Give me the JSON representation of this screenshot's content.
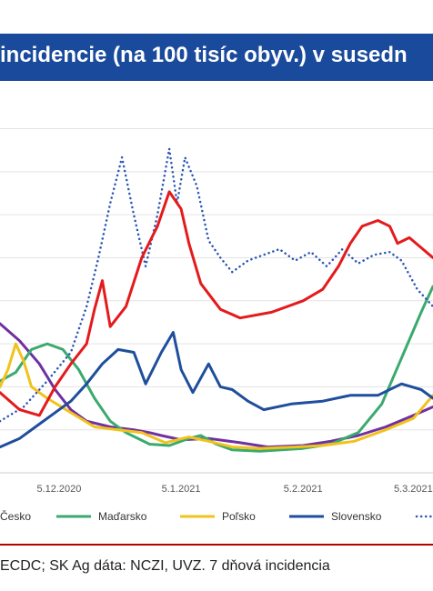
{
  "title": "incidencie (na 100 tisíc obyv.) v susedn",
  "source": "ECDC; SK Ag dáta: NCZI, UVZ. 7 dňová incidencia",
  "colors": {
    "title_bg": "#1a4a9c",
    "cesko": "#7030a0",
    "madarsko": "#3aaa6e",
    "polsko": "#f2c21b",
    "slovensko": "#1f4e9c",
    "dotted": "#2a55b5",
    "red": "#e41a1c"
  },
  "chart_data": {
    "type": "line",
    "title": "incidencie (na 100 tisíc obyv.) v susedn",
    "x_ticks": [
      "5.12.2020",
      "5.1.2021",
      "5.2.2021",
      "5.3.2021"
    ],
    "x_range": [
      "2020-11-20",
      "2021-03-10"
    ],
    "y_range": [
      0,
      13
    ],
    "grid": true,
    "legend_position": "bottom",
    "legend": [
      "Česko",
      "Maďarsko",
      "Poľsko",
      "Slovensko"
    ],
    "series": [
      {
        "name": "Česko",
        "color": "#7030a0",
        "style": "solid",
        "points": [
          [
            "2020-11-20",
            5.2
          ],
          [
            "2020-11-25",
            4.6
          ],
          [
            "2020-11-30",
            3.8
          ],
          [
            "2020-12-04",
            2.9
          ],
          [
            "2020-12-08",
            2.2
          ],
          [
            "2020-12-12",
            1.8
          ],
          [
            "2020-12-18",
            1.6
          ],
          [
            "2020-12-24",
            1.5
          ],
          [
            "2020-12-28",
            1.4
          ],
          [
            "2020-12-31",
            1.3
          ],
          [
            "2021-01-05",
            1.15
          ],
          [
            "2021-01-12",
            1.2
          ],
          [
            "2021-01-20",
            1.05
          ],
          [
            "2021-01-27",
            0.9
          ],
          [
            "2021-02-05",
            0.95
          ],
          [
            "2021-02-12",
            1.1
          ],
          [
            "2021-02-19",
            1.3
          ],
          [
            "2021-02-26",
            1.6
          ],
          [
            "2021-03-05",
            2.0
          ],
          [
            "2021-03-10",
            2.3
          ]
        ]
      },
      {
        "name": "Maďarsko",
        "color": "#3aaa6e",
        "style": "solid",
        "points": [
          [
            "2020-11-20",
            3.2
          ],
          [
            "2020-11-24",
            3.5
          ],
          [
            "2020-11-28",
            4.3
          ],
          [
            "2020-12-02",
            4.5
          ],
          [
            "2020-12-06",
            4.3
          ],
          [
            "2020-12-10",
            3.6
          ],
          [
            "2020-12-14",
            2.6
          ],
          [
            "2020-12-18",
            1.8
          ],
          [
            "2020-12-22",
            1.4
          ],
          [
            "2020-12-28",
            1.0
          ],
          [
            "2021-01-02",
            0.95
          ],
          [
            "2021-01-07",
            1.2
          ],
          [
            "2021-01-10",
            1.3
          ],
          [
            "2021-01-14",
            1.0
          ],
          [
            "2021-01-18",
            0.8
          ],
          [
            "2021-01-25",
            0.75
          ],
          [
            "2021-02-05",
            0.85
          ],
          [
            "2021-02-12",
            1.0
          ],
          [
            "2021-02-19",
            1.4
          ],
          [
            "2021-02-25",
            2.4
          ],
          [
            "2021-03-02",
            4.0
          ],
          [
            "2021-03-07",
            5.6
          ],
          [
            "2021-03-10",
            6.5
          ]
        ]
      },
      {
        "name": "Poľsko",
        "color": "#f2c21b",
        "style": "solid",
        "points": [
          [
            "2020-11-20",
            3.0
          ],
          [
            "2020-11-22",
            3.6
          ],
          [
            "2020-11-24",
            4.5
          ],
          [
            "2020-11-26",
            3.9
          ],
          [
            "2020-11-28",
            3.0
          ],
          [
            "2020-12-02",
            2.6
          ],
          [
            "2020-12-08",
            2.1
          ],
          [
            "2020-12-14",
            1.6
          ],
          [
            "2020-12-20",
            1.5
          ],
          [
            "2020-12-26",
            1.4
          ],
          [
            "2021-01-01",
            1.05
          ],
          [
            "2021-01-07",
            1.25
          ],
          [
            "2021-01-12",
            1.1
          ],
          [
            "2021-01-18",
            0.9
          ],
          [
            "2021-01-25",
            0.85
          ],
          [
            "2021-02-03",
            0.9
          ],
          [
            "2021-02-10",
            0.95
          ],
          [
            "2021-02-18",
            1.1
          ],
          [
            "2021-02-26",
            1.5
          ],
          [
            "2021-03-05",
            1.9
          ],
          [
            "2021-03-10",
            2.7
          ]
        ]
      },
      {
        "name": "Slovensko",
        "color": "#1f4e9c",
        "style": "solid",
        "points": [
          [
            "2020-11-20",
            0.9
          ],
          [
            "2020-11-25",
            1.2
          ],
          [
            "2020-11-30",
            1.7
          ],
          [
            "2020-12-04",
            2.1
          ],
          [
            "2020-12-08",
            2.5
          ],
          [
            "2020-12-12",
            3.1
          ],
          [
            "2020-12-16",
            3.8
          ],
          [
            "2020-12-20",
            4.3
          ],
          [
            "2020-12-24",
            4.2
          ],
          [
            "2020-12-27",
            3.1
          ],
          [
            "2020-12-31",
            4.2
          ],
          [
            "2021-01-03",
            4.9
          ],
          [
            "2021-01-05",
            3.6
          ],
          [
            "2021-01-08",
            2.8
          ],
          [
            "2021-01-12",
            3.8
          ],
          [
            "2021-01-15",
            3.0
          ],
          [
            "2021-01-18",
            2.9
          ],
          [
            "2021-01-22",
            2.5
          ],
          [
            "2021-01-26",
            2.2
          ],
          [
            "2021-02-02",
            2.4
          ],
          [
            "2021-02-10",
            2.5
          ],
          [
            "2021-02-17",
            2.7
          ],
          [
            "2021-02-24",
            2.7
          ],
          [
            "2021-03-02",
            3.1
          ],
          [
            "2021-03-07",
            2.9
          ],
          [
            "2021-03-10",
            2.6
          ]
        ]
      },
      {
        "name": "",
        "color": "#2a55b5",
        "style": "dotted",
        "points": [
          [
            "2020-11-20",
            1.8
          ],
          [
            "2020-11-26",
            2.3
          ],
          [
            "2020-12-02",
            3.2
          ],
          [
            "2020-12-08",
            4.2
          ],
          [
            "2020-12-12",
            5.8
          ],
          [
            "2020-12-15",
            7.5
          ],
          [
            "2020-12-18",
            9.4
          ],
          [
            "2020-12-21",
            11.0
          ],
          [
            "2020-12-24",
            9.0
          ],
          [
            "2020-12-27",
            7.2
          ],
          [
            "2020-12-30",
            9.0
          ],
          [
            "2021-01-02",
            11.3
          ],
          [
            "2021-01-04",
            9.4
          ],
          [
            "2021-01-06",
            11.0
          ],
          [
            "2021-01-09",
            10.0
          ],
          [
            "2021-01-12",
            8.1
          ],
          [
            "2021-01-15",
            7.5
          ],
          [
            "2021-01-18",
            7.0
          ],
          [
            "2021-01-22",
            7.4
          ],
          [
            "2021-01-26",
            7.6
          ],
          [
            "2021-01-30",
            7.8
          ],
          [
            "2021-02-03",
            7.4
          ],
          [
            "2021-02-07",
            7.7
          ],
          [
            "2021-02-11",
            7.2
          ],
          [
            "2021-02-15",
            7.8
          ],
          [
            "2021-02-19",
            7.3
          ],
          [
            "2021-02-23",
            7.6
          ],
          [
            "2021-02-27",
            7.7
          ],
          [
            "2021-03-02",
            7.4
          ],
          [
            "2021-03-06",
            6.4
          ],
          [
            "2021-03-10",
            5.8
          ]
        ]
      },
      {
        "name": "",
        "color": "#e41a1c",
        "style": "solid",
        "points": [
          [
            "2020-11-20",
            2.8
          ],
          [
            "2020-11-25",
            2.2
          ],
          [
            "2020-11-30",
            2.0
          ],
          [
            "2020-12-04",
            3.0
          ],
          [
            "2020-12-08",
            3.8
          ],
          [
            "2020-12-12",
            4.5
          ],
          [
            "2020-12-14",
            5.7
          ],
          [
            "2020-12-16",
            6.7
          ],
          [
            "2020-12-18",
            5.1
          ],
          [
            "2020-12-22",
            5.8
          ],
          [
            "2020-12-26",
            7.5
          ],
          [
            "2020-12-30",
            8.6
          ],
          [
            "2021-01-02",
            9.8
          ],
          [
            "2021-01-05",
            9.2
          ],
          [
            "2021-01-07",
            8.0
          ],
          [
            "2021-01-10",
            6.6
          ],
          [
            "2021-01-15",
            5.7
          ],
          [
            "2021-01-20",
            5.4
          ],
          [
            "2021-01-28",
            5.6
          ],
          [
            "2021-02-05",
            6.0
          ],
          [
            "2021-02-10",
            6.4
          ],
          [
            "2021-02-14",
            7.2
          ],
          [
            "2021-02-17",
            8.0
          ],
          [
            "2021-02-20",
            8.6
          ],
          [
            "2021-02-24",
            8.8
          ],
          [
            "2021-02-27",
            8.6
          ],
          [
            "2021-03-01",
            8.0
          ],
          [
            "2021-03-04",
            8.2
          ],
          [
            "2021-03-10",
            7.5
          ]
        ]
      }
    ]
  }
}
